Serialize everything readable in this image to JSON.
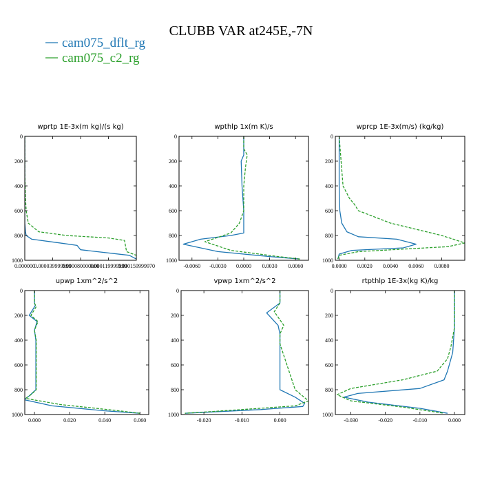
{
  "figure": {
    "title": "CLUBB VAR at245E,-7N",
    "colors": {
      "dflt": "#1f77b4",
      "c2": "#2ca02c"
    },
    "legend": [
      {
        "label": "cam075_dflt_rg",
        "color": "#1f77b4"
      },
      {
        "label": "cam075_c2_rg",
        "color": "#2ca02c"
      }
    ]
  },
  "chart_data": [
    {
      "type": "line",
      "title": "wprtp  1E-3x(m kg)/(s kg)",
      "xlim": [
        0,
        0.00016
      ],
      "ylim": [
        1000,
        0
      ],
      "xticks": [
        0,
        4e-05,
        8e-05,
        0.00012,
        0.00016
      ],
      "xtick_labels": [
        "0.000000",
        "0.000039999999",
        "0.000080000000",
        "0.000119999999",
        "0.000159999970"
      ],
      "yticks": [
        0,
        200,
        400,
        600,
        800,
        1000
      ],
      "ytick_labels": [
        "0",
        "200",
        "400",
        "600",
        "800",
        "1000"
      ],
      "series": [
        {
          "name": "cam075_dflt_rg",
          "style": "solid",
          "x": [
            0,
            0,
            0,
            1e-06,
            2e-06,
            1e-05,
            5e-05,
            7.5e-05,
            8e-05,
            0.00015,
            0.00016
          ],
          "y": [
            0,
            300,
            700,
            770,
            800,
            830,
            860,
            880,
            915,
            960,
            990
          ]
        },
        {
          "name": "cam075_c2_rg",
          "style": "dashed",
          "x": [
            0,
            0,
            1e-06,
            2e-06,
            5e-06,
            2e-05,
            6e-05,
            0.00012,
            0.000143,
            0.000146,
            0.00016,
            0.00016
          ],
          "y": [
            0,
            300,
            500,
            600,
            700,
            770,
            800,
            820,
            840,
            930,
            960,
            990
          ]
        }
      ]
    },
    {
      "type": "line",
      "title": "wpthlp  1x(m K)/s",
      "xlim": [
        -0.0075,
        0.0075
      ],
      "ylim": [
        1000,
        0
      ],
      "xticks": [
        -0.006,
        -0.003,
        0,
        0.003,
        0.006
      ],
      "xtick_labels": [
        "-0.0060",
        "-0.0030",
        "0.0000",
        "0.0030",
        "0.0060"
      ],
      "yticks": [
        0,
        200,
        400,
        600,
        800,
        1000
      ],
      "ytick_labels": [
        "0",
        "200",
        "400",
        "600",
        "800",
        "1000"
      ],
      "series": [
        {
          "name": "cam075_dflt_rg",
          "style": "solid",
          "x": [
            0,
            0,
            -0.0003,
            -0.0002,
            0,
            0,
            -0.0015,
            -0.005,
            -0.007,
            -0.003,
            0.003,
            0.0065
          ],
          "y": [
            0,
            150,
            200,
            400,
            600,
            780,
            800,
            830,
            870,
            930,
            970,
            990
          ]
        },
        {
          "name": "cam075_c2_rg",
          "style": "dashed",
          "x": [
            0,
            0,
            0.0004,
            0.0002,
            0,
            0,
            -0.0005,
            -0.0015,
            -0.0045,
            -0.0015,
            0.004,
            0.0065
          ],
          "y": [
            0,
            100,
            150,
            250,
            400,
            600,
            700,
            780,
            850,
            920,
            970,
            990
          ]
        }
      ]
    },
    {
      "type": "line",
      "title": "wprcp  1E-3x(m/s) (kg/kg)",
      "xlim": [
        -0.0003,
        0.0098
      ],
      "ylim": [
        1000,
        0
      ],
      "xticks": [
        0,
        0.002,
        0.004,
        0.006,
        0.008
      ],
      "xtick_labels": [
        "0.0000",
        "0.0020",
        "0.0040",
        "0.0060",
        "0.0080"
      ],
      "yticks": [
        0,
        200,
        400,
        600,
        800,
        1000
      ],
      "ytick_labels": [
        "0",
        "200",
        "400",
        "600",
        "800",
        "1000"
      ],
      "series": [
        {
          "name": "cam075_dflt_rg",
          "style": "solid",
          "x": [
            0,
            0,
            5e-05,
            0.0002,
            0.0006,
            0.0015,
            0.0045,
            0.006,
            0.005,
            0.001,
            0,
            -0.0001
          ],
          "y": [
            0,
            400,
            600,
            700,
            770,
            810,
            830,
            870,
            900,
            920,
            950,
            990
          ]
        },
        {
          "name": "cam075_c2_rg",
          "style": "dashed",
          "x": [
            0,
            0.0003,
            0.0008,
            0.0012,
            0.0015,
            0.004,
            0.008,
            0.0098,
            0.0085,
            0.0015,
            0,
            -0.0001
          ],
          "y": [
            0,
            400,
            500,
            550,
            600,
            700,
            800,
            860,
            890,
            930,
            960,
            990
          ]
        }
      ]
    },
    {
      "type": "line",
      "title": "upwp  1xm^2/s^2",
      "xlim": [
        -0.0055,
        0.065
      ],
      "ylim": [
        1000,
        0
      ],
      "xticks": [
        0,
        0.02,
        0.04,
        0.06
      ],
      "xtick_labels": [
        "0.000",
        "0.020",
        "0.040",
        "0.060"
      ],
      "yticks": [
        0,
        200,
        400,
        600,
        800,
        1000
      ],
      "ytick_labels": [
        "0",
        "200",
        "400",
        "600",
        "800",
        "1000"
      ],
      "series": [
        {
          "name": "cam075_dflt_rg",
          "style": "solid",
          "x": [
            0,
            0,
            0.0005,
            -0.003,
            0.0015,
            0,
            0.0008,
            0.0008,
            -0.003,
            -0.006,
            0.01,
            0.04,
            0.06
          ],
          "y": [
            0,
            100,
            120,
            200,
            250,
            320,
            400,
            800,
            850,
            880,
            930,
            970,
            990
          ]
        },
        {
          "name": "cam075_c2_rg",
          "style": "dashed",
          "x": [
            0,
            0,
            0.001,
            -0.002,
            0.002,
            0,
            0.001,
            0.001,
            -0.002,
            -0.005,
            0.015,
            0.045,
            0.06
          ],
          "y": [
            0,
            100,
            130,
            200,
            250,
            320,
            400,
            800,
            840,
            870,
            920,
            965,
            990
          ]
        }
      ]
    },
    {
      "type": "line",
      "title": "vpwp  1xm^2/s^2",
      "xlim": [
        -0.026,
        0.0075
      ],
      "ylim": [
        1000,
        0
      ],
      "xticks": [
        -0.02,
        -0.01,
        0
      ],
      "xtick_labels": [
        "-0.020",
        "-0.010",
        "0.000"
      ],
      "yticks": [
        0,
        200,
        400,
        600,
        800,
        1000
      ],
      "ytick_labels": [
        "0",
        "200",
        "400",
        "600",
        "800",
        "1000"
      ],
      "series": [
        {
          "name": "cam075_dflt_rg",
          "style": "solid",
          "x": [
            0,
            0,
            -0.0035,
            -0.0005,
            0,
            0,
            0,
            0.004,
            0.0065,
            0.006,
            -0.005,
            -0.025
          ],
          "y": [
            0,
            100,
            180,
            280,
            350,
            450,
            800,
            860,
            910,
            935,
            960,
            990
          ]
        },
        {
          "name": "cam075_c2_rg",
          "style": "dashed",
          "x": [
            0,
            0,
            -0.0015,
            0.001,
            0,
            0,
            0.004,
            0.0075,
            0.004,
            -0.01,
            -0.025
          ],
          "y": [
            0,
            100,
            170,
            280,
            350,
            430,
            800,
            890,
            930,
            960,
            990
          ]
        }
      ]
    },
    {
      "type": "line",
      "title": "rtpthlp  1E-3x(kg K)/kg",
      "xlim": [
        -0.0345,
        0.003
      ],
      "ylim": [
        1000,
        0
      ],
      "xticks": [
        -0.03,
        -0.02,
        -0.01,
        0
      ],
      "xtick_labels": [
        "-0.030",
        "-0.020",
        "-0.010",
        "0.000"
      ],
      "yticks": [
        0,
        200,
        400,
        600,
        800,
        1000
      ],
      "ytick_labels": [
        "0",
        "200",
        "400",
        "600",
        "800",
        "1000"
      ],
      "series": [
        {
          "name": "cam075_dflt_rg",
          "style": "solid",
          "x": [
            0,
            0,
            -0.0005,
            -0.002,
            -0.003,
            -0.01,
            -0.028,
            -0.032,
            -0.025,
            -0.01,
            -0.002
          ],
          "y": [
            0,
            300,
            500,
            650,
            720,
            790,
            830,
            860,
            900,
            950,
            990
          ]
        },
        {
          "name": "cam075_c2_rg",
          "style": "dashed",
          "x": [
            0,
            0,
            -0.001,
            -0.002,
            -0.005,
            -0.015,
            -0.03,
            -0.034,
            -0.03,
            -0.015,
            -0.003
          ],
          "y": [
            0,
            300,
            450,
            550,
            650,
            720,
            790,
            840,
            890,
            940,
            990
          ]
        }
      ]
    }
  ]
}
